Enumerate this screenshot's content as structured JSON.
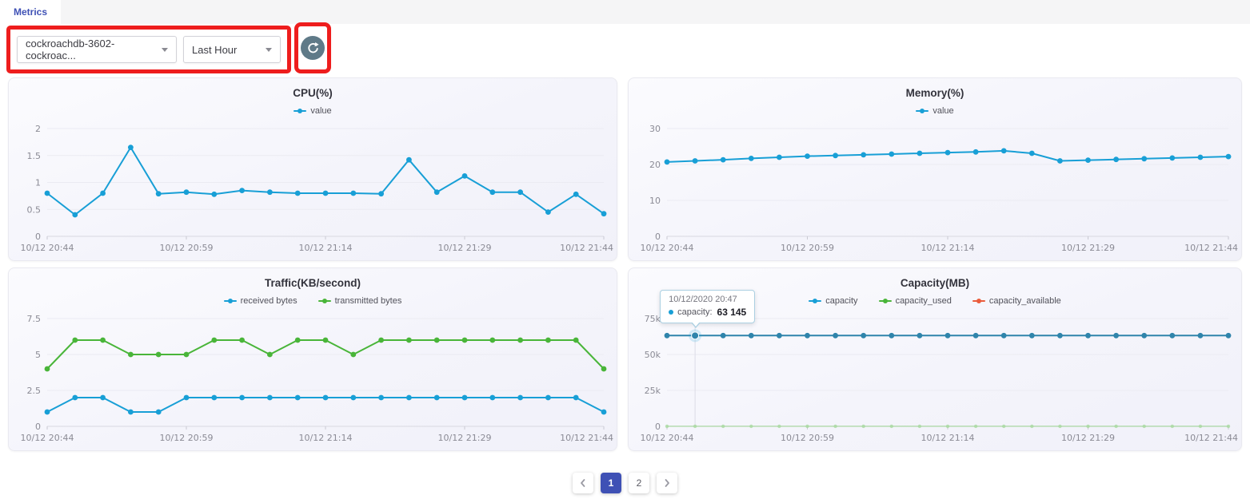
{
  "tab_bar": {
    "tabs": [
      {
        "label": "Metrics",
        "active": true
      }
    ]
  },
  "toolbar": {
    "resource_select": {
      "value": "cockroachdb-3602-cockroac...",
      "icon": "chevron-down-icon"
    },
    "time_select": {
      "value": "Last Hour",
      "icon": "chevron-down-icon"
    },
    "refresh_button": {
      "icon": "refresh-icon",
      "color": "#5f7a88"
    },
    "annotation_color": "#ee1d1d"
  },
  "chart_data": [
    {
      "type": "line",
      "title": "CPU(%)",
      "legend_position": "top",
      "grid": true,
      "x": [
        "10/12 20:44",
        "10/12 20:47",
        "10/12 20:50",
        "10/12 20:53",
        "10/12 20:56",
        "10/12 20:59",
        "10/12 21:02",
        "10/12 21:05",
        "10/12 21:08",
        "10/12 21:11",
        "10/12 21:14",
        "10/12 21:17",
        "10/12 21:20",
        "10/12 21:23",
        "10/12 21:26",
        "10/12 21:29",
        "10/12 21:32",
        "10/12 21:35",
        "10/12 21:38",
        "10/12 21:41",
        "10/12 21:44"
      ],
      "x_tick_labels": [
        "10/12 20:44",
        "10/12 20:59",
        "10/12 21:14",
        "10/12 21:29",
        "10/12 21:44"
      ],
      "y_ticks": [
        0,
        0.5,
        1,
        1.5,
        2
      ],
      "y_tick_labels": [
        "0",
        "0.5",
        "1",
        "1.5",
        "2"
      ],
      "ylim": [
        0,
        2
      ],
      "series": [
        {
          "name": "value",
          "color": "#189fd6",
          "values": [
            0.8,
            0.4,
            0.8,
            1.65,
            0.79,
            0.82,
            0.78,
            0.85,
            0.82,
            0.8,
            0.8,
            0.8,
            0.79,
            1.42,
            0.82,
            1.12,
            0.82,
            0.82,
            0.45,
            0.78,
            0.42
          ]
        }
      ]
    },
    {
      "type": "line",
      "title": "Memory(%)",
      "legend_position": "top",
      "grid": true,
      "x": [
        "10/12 20:44",
        "10/12 20:47",
        "10/12 20:50",
        "10/12 20:53",
        "10/12 20:56",
        "10/12 20:59",
        "10/12 21:02",
        "10/12 21:05",
        "10/12 21:08",
        "10/12 21:11",
        "10/12 21:14",
        "10/12 21:17",
        "10/12 21:20",
        "10/12 21:23",
        "10/12 21:26",
        "10/12 21:29",
        "10/12 21:32",
        "10/12 21:35",
        "10/12 21:38",
        "10/12 21:41",
        "10/12 21:44"
      ],
      "x_tick_labels": [
        "10/12 20:44",
        "10/12 20:59",
        "10/12 21:14",
        "10/12 21:29",
        "10/12 21:44"
      ],
      "y_ticks": [
        0,
        10,
        20,
        30
      ],
      "y_tick_labels": [
        "0",
        "10",
        "20",
        "30"
      ],
      "ylim": [
        0,
        30
      ],
      "series": [
        {
          "name": "value",
          "color": "#189fd6",
          "values": [
            20.7,
            21,
            21.3,
            21.7,
            22,
            22.3,
            22.5,
            22.7,
            22.9,
            23.1,
            23.3,
            23.5,
            23.8,
            23.1,
            21,
            21.2,
            21.4,
            21.6,
            21.8,
            22,
            22.2
          ]
        }
      ]
    },
    {
      "type": "line",
      "title": "Traffic(KB/second)",
      "legend_position": "top",
      "grid": true,
      "x": [
        "10/12 20:44",
        "10/12 20:47",
        "10/12 20:50",
        "10/12 20:53",
        "10/12 20:56",
        "10/12 20:59",
        "10/12 21:02",
        "10/12 21:05",
        "10/12 21:08",
        "10/12 21:11",
        "10/12 21:14",
        "10/12 21:17",
        "10/12 21:20",
        "10/12 21:23",
        "10/12 21:26",
        "10/12 21:29",
        "10/12 21:32",
        "10/12 21:35",
        "10/12 21:38",
        "10/12 21:41",
        "10/12 21:44"
      ],
      "x_tick_labels": [
        "10/12 20:44",
        "10/12 20:59",
        "10/12 21:14",
        "10/12 21:29",
        "10/12 21:44"
      ],
      "y_ticks": [
        0,
        2.5,
        5,
        7.5
      ],
      "y_tick_labels": [
        "0",
        "2.5",
        "5",
        "7.5"
      ],
      "ylim": [
        0,
        7.5
      ],
      "series": [
        {
          "name": "received bytes",
          "color": "#189fd6",
          "values": [
            1,
            2,
            2,
            1,
            1,
            2,
            2,
            2,
            2,
            2,
            2,
            2,
            2,
            2,
            2,
            2,
            2,
            2,
            2,
            2,
            1
          ]
        },
        {
          "name": "transmitted bytes",
          "color": "#49b539",
          "values": [
            4,
            6,
            6,
            5,
            5,
            5,
            6,
            6,
            5,
            6,
            6,
            5,
            6,
            6,
            6,
            6,
            6,
            6,
            6,
            6,
            4
          ]
        }
      ]
    },
    {
      "type": "line",
      "title": "Capacity(MB)",
      "legend_position": "top",
      "grid": true,
      "x": [
        "10/12 20:44",
        "10/12 20:47",
        "10/12 20:50",
        "10/12 20:53",
        "10/12 20:56",
        "10/12 20:59",
        "10/12 21:02",
        "10/12 21:05",
        "10/12 21:08",
        "10/12 21:11",
        "10/12 21:14",
        "10/12 21:17",
        "10/12 21:20",
        "10/12 21:23",
        "10/12 21:26",
        "10/12 21:29",
        "10/12 21:32",
        "10/12 21:35",
        "10/12 21:38",
        "10/12 21:41",
        "10/12 21:44"
      ],
      "x_tick_labels": [
        "10/12 20:44",
        "10/12 20:59",
        "10/12 21:14",
        "10/12 21:29",
        "10/12 21:44"
      ],
      "y_ticks": [
        0,
        25000,
        50000,
        75000
      ],
      "y_tick_labels": [
        "0",
        "25k",
        "50k",
        "75k"
      ],
      "ylim": [
        0,
        75000
      ],
      "legend": [
        {
          "name": "capacity",
          "color": "#189fd6"
        },
        {
          "name": "capacity_used",
          "color": "#49b539"
        },
        {
          "name": "capacity_available",
          "color": "#ea5c3c"
        }
      ],
      "series": [
        {
          "name": "capacity",
          "color": "#189fd6",
          "line_color": "#2f84ab",
          "values": [
            63145,
            63145,
            63145,
            63145,
            63145,
            63145,
            63145,
            63145,
            63145,
            63145,
            63145,
            63145,
            63145,
            63145,
            63145,
            63145,
            63145,
            63145,
            63145,
            63145,
            63145
          ]
        },
        {
          "name": "capacity_used",
          "color": "#49b539",
          "line_color": "#a5d89e",
          "muted": true,
          "opacity": 0.75,
          "values": [
            40,
            40,
            40,
            40,
            40,
            40,
            40,
            40,
            40,
            40,
            40,
            40,
            40,
            40,
            40,
            40,
            40,
            40,
            40,
            40,
            40
          ]
        },
        {
          "name": "capacity_available",
          "color": "#ea5c3c",
          "hidden": true,
          "values": []
        }
      ],
      "tooltip": {
        "index": 1,
        "title": "10/12/2020 20:47",
        "series": "capacity",
        "value": "63 145",
        "marker_color": "#189fd6"
      }
    }
  ],
  "pagination": {
    "prev_icon": "chevron-left-icon",
    "next_icon": "chevron-right-icon",
    "pages": [
      {
        "label": "1",
        "active": true
      },
      {
        "label": "2",
        "active": false
      }
    ]
  }
}
